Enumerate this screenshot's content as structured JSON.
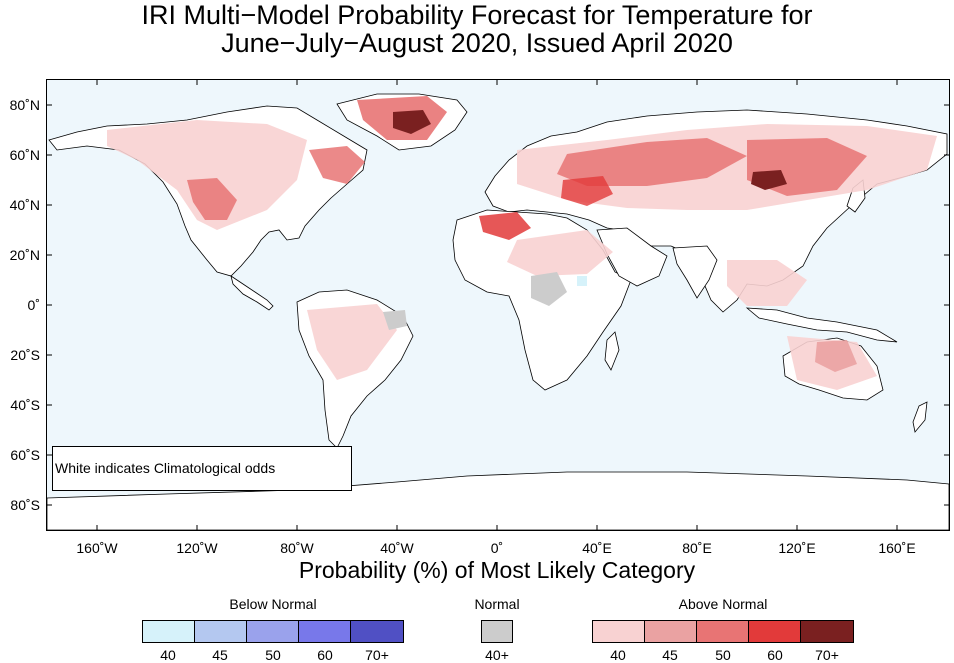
{
  "title_line1": "IRI Multi−Model Probability Forecast for Temperature for",
  "title_line2": "June−July−August 2020, Issued April 2020",
  "lat_ticks": [
    "80˚N",
    "60˚N",
    "40˚N",
    "20˚N",
    "0˚",
    "20˚S",
    "40˚S",
    "60˚S",
    "80˚S"
  ],
  "lon_ticks": [
    "160˚W",
    "120˚W",
    "80˚W",
    "40˚W",
    "0˚",
    "40˚E",
    "80˚E",
    "120˚E",
    "160˚E"
  ],
  "note": "White indicates Climatological odds",
  "xlabel": "Probability (%) of Most Likely Category",
  "legend": {
    "below": {
      "title": "Below Normal",
      "labels": [
        "40",
        "45",
        "50",
        "60",
        "70+"
      ],
      "colors": [
        "#d6f2fa",
        "#b4c8f0",
        "#9aa2ec",
        "#7878ea",
        "#5050c4"
      ]
    },
    "normal": {
      "title": "Normal",
      "labels": [
        "40+"
      ],
      "colors": [
        "#cccccc"
      ]
    },
    "above": {
      "title": "Above Normal",
      "labels": [
        "40",
        "45",
        "50",
        "60",
        "70+"
      ],
      "colors": [
        "#f8d2d2",
        "#eaa2a2",
        "#e87474",
        "#e23a3a",
        "#7a2020"
      ]
    }
  },
  "colors": {
    "ocean": "#eef7fc",
    "land": "#ffffff",
    "coast": "#000000",
    "border": "#777777"
  }
}
